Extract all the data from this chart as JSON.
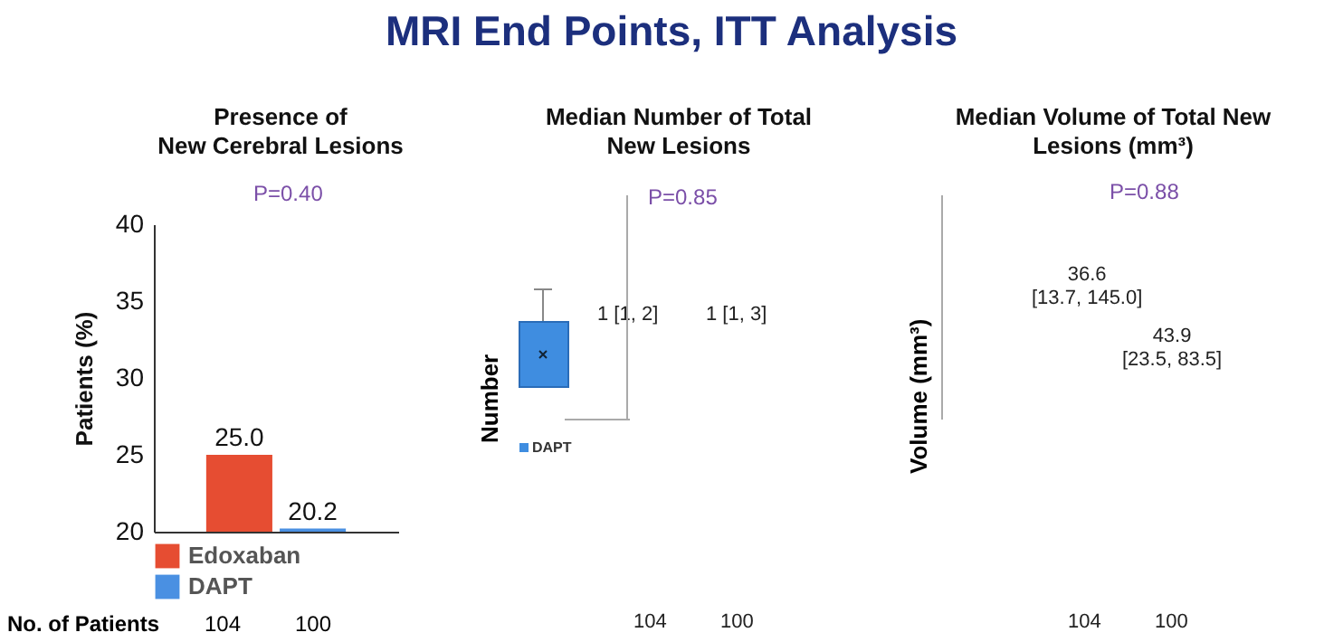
{
  "chart_data": [
    {
      "type": "bar",
      "title": "MRI End Points, ITT Analysis",
      "subtitle": "Presence of\nNew Cerebral Lesions",
      "ylabel": "Patients  (%)",
      "categories": [
        null
      ],
      "series": [
        {
          "name": "Edoxaban",
          "color": "#e64d32",
          "values": [
            25.0
          ],
          "value_labels": [
            "25.0"
          ]
        },
        {
          "name": "DAPT",
          "color": "#4a90e2",
          "values": [
            20.2
          ],
          "value_labels": [
            "20.2"
          ]
        }
      ],
      "ylim": [
        20,
        40
      ],
      "yticks": [
        20,
        25,
        30,
        35,
        40
      ],
      "legend": "bottom",
      "grid": false,
      "annotations": [
        "P=0.40",
        "No. of Patients",
        "104",
        "100"
      ]
    },
    {
      "type": "other",
      "title": "Median Number of Total\nNew Lesions",
      "ylabel": "Number",
      "legend_title": "DAPT",
      "annotations": [
        "P=0.85",
        "1 [1, 2]",
        "1 [1, 3]",
        "104",
        "100"
      ]
    },
    {
      "type": "other",
      "title": "Median Volume of Total New\nLesions (mm³)",
      "ylabel": "Volume (mm³)",
      "annotations": [
        "P=0.88",
        "36.6\n[13.7, 145.0]",
        "43.9\n[23.5, 83.5]",
        "104",
        "100"
      ]
    }
  ]
}
